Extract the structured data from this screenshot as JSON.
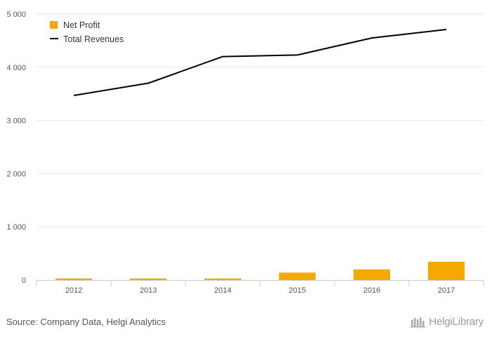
{
  "chart_data": {
    "type": "bar",
    "categories": [
      "2012",
      "2013",
      "2014",
      "2015",
      "2016",
      "2017"
    ],
    "series": [
      {
        "name": "Net Profit",
        "type": "bar",
        "values": [
          30,
          30,
          30,
          140,
          200,
          345
        ]
      },
      {
        "name": "Total Revenues",
        "type": "line",
        "values": [
          3470,
          3700,
          4200,
          4230,
          4550,
          4710
        ]
      }
    ],
    "ylim": [
      0,
      5000
    ],
    "yticks": [
      0,
      1000,
      2000,
      3000,
      4000,
      5000
    ],
    "ytick_labels": [
      "0",
      "1 000",
      "2 000",
      "3 000",
      "4 000",
      "5 000"
    ],
    "grid": true,
    "legend_position": "top-left",
    "colors": {
      "bar": "#f5a800",
      "line": "#000000",
      "grid": "#e6e6e6"
    }
  },
  "footer": {
    "source": "Source: Company Data, Helgi Analytics",
    "brand": "HelgiLibrary"
  }
}
